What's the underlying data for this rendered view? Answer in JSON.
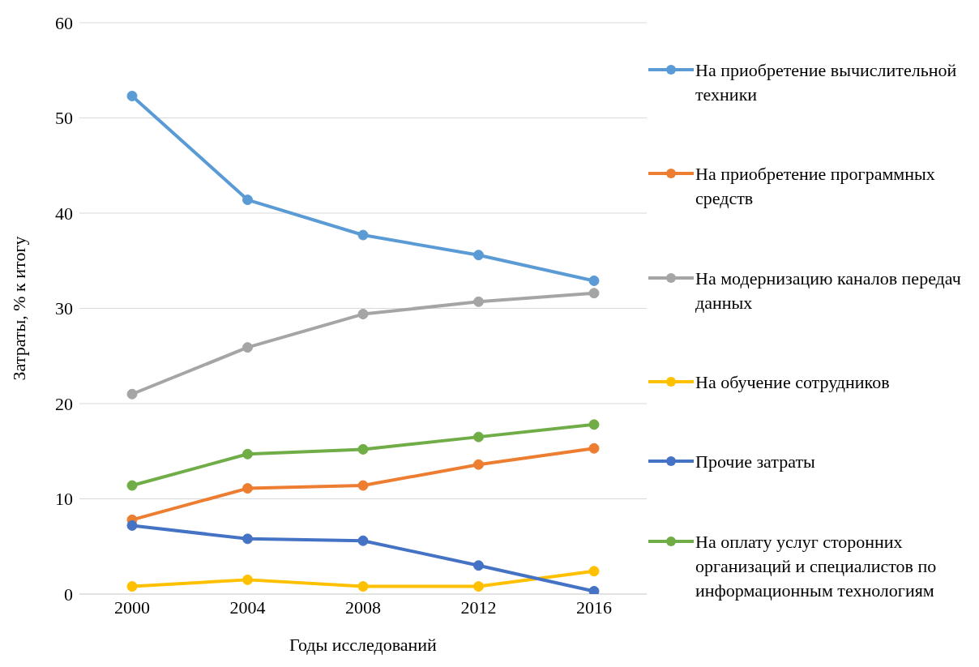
{
  "chart_data": {
    "type": "line",
    "xlabel": "Годы исследований",
    "ylabel": "Затраты, % к итогу",
    "categories": [
      "2000",
      "2004",
      "2008",
      "2012",
      "2016"
    ],
    "series": [
      {
        "name": "На приобретение вычислительной техники",
        "color": "#5b9bd5",
        "values": [
          52.3,
          41.4,
          37.7,
          35.6,
          32.9
        ]
      },
      {
        "name": "На приобретение программных средств",
        "color": "#ed7d31",
        "values": [
          7.8,
          11.1,
          11.4,
          13.6,
          15.3
        ]
      },
      {
        "name": "На модернизацию каналов передач данных",
        "color": "#a5a5a5",
        "values": [
          21.0,
          25.9,
          29.4,
          30.7,
          31.6
        ]
      },
      {
        "name": "На обучение сотрудников",
        "color": "#ffc000",
        "values": [
          0.8,
          1.5,
          0.8,
          0.8,
          2.4
        ]
      },
      {
        "name": "Прочие затраты",
        "color": "#4472c4",
        "values": [
          7.2,
          5.8,
          5.6,
          3.0,
          0.3
        ]
      },
      {
        "name": "На оплату услуг сторонних организаций и специалистов по информационным технологиям",
        "color": "#70ad47",
        "values": [
          11.4,
          14.7,
          15.2,
          16.5,
          17.8
        ]
      }
    ],
    "ylim": [
      0,
      60
    ],
    "yticks": [
      0,
      10,
      20,
      30,
      40,
      50,
      60
    ],
    "grid": "y",
    "legend": "right",
    "marker": "circle",
    "line_style": "solid"
  }
}
